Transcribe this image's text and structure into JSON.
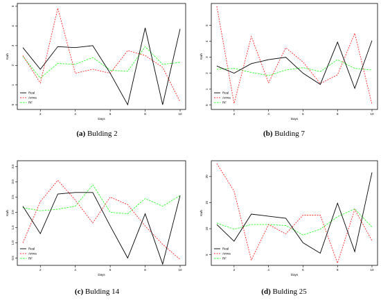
{
  "colors": {
    "Real": "#000000",
    "Arima": "#ff2a2a",
    "RF": "#33ff33"
  },
  "captions": [
    {
      "letter": "(a)",
      "text": " Bulding 2"
    },
    {
      "letter": "(b)",
      "text": " Bulding 7"
    },
    {
      "letter": "(c)",
      "text": " Bulding 14"
    },
    {
      "letter": "(d)",
      "text": " Bulding 25"
    }
  ],
  "chart_data": [
    {
      "type": "line",
      "xlabel": "Days",
      "ylabel": "Kwh",
      "x": [
        1,
        2,
        3,
        4,
        5,
        6,
        7,
        8,
        9,
        10
      ],
      "xticks": [
        2,
        4,
        6,
        8,
        10
      ],
      "yticks": [
        0,
        1,
        2,
        3,
        4,
        5
      ],
      "ylim": [
        -0.1,
        5.0
      ],
      "legend": "bottom-left",
      "series": [
        {
          "name": "Real",
          "values": [
            2.9,
            1.8,
            2.95,
            2.9,
            3.0,
            1.6,
            0.0,
            3.9,
            0.0,
            3.85
          ]
        },
        {
          "name": "Arima",
          "values": [
            2.5,
            1.1,
            4.9,
            1.6,
            1.8,
            1.6,
            2.75,
            2.5,
            1.9,
            0.15
          ]
        },
        {
          "name": "RF",
          "values": [
            2.45,
            1.35,
            2.1,
            2.05,
            2.4,
            1.75,
            1.7,
            2.95,
            2.05,
            2.15
          ]
        }
      ]
    },
    {
      "type": "line",
      "xlabel": "Days",
      "ylabel": "Kwh",
      "x": [
        1,
        2,
        3,
        4,
        5,
        6,
        7,
        8,
        9,
        10
      ],
      "xticks": [
        2,
        4,
        6,
        8,
        10
      ],
      "yticks": [
        0,
        1,
        2,
        3,
        4,
        5
      ],
      "ylim": [
        -0.1,
        6.2
      ],
      "legend": "bottom-left",
      "series": [
        {
          "name": "Real",
          "values": [
            2.45,
            2.0,
            2.6,
            2.85,
            3.0,
            2.0,
            1.3,
            3.95,
            1.05,
            4.05
          ]
        },
        {
          "name": "Arima",
          "values": [
            6.2,
            0.1,
            4.3,
            1.4,
            3.6,
            2.7,
            1.35,
            1.9,
            4.5,
            0.05
          ]
        },
        {
          "name": "RF",
          "values": [
            2.25,
            2.3,
            2.05,
            1.85,
            2.2,
            2.35,
            2.1,
            2.85,
            2.3,
            2.2
          ]
        }
      ]
    },
    {
      "type": "line",
      "xlabel": "Days",
      "ylabel": "Kwh",
      "x": [
        1,
        2,
        3,
        4,
        5,
        6,
        7,
        8,
        9,
        10
      ],
      "xticks": [
        2,
        4,
        6,
        8,
        10
      ],
      "yticks": [
        0.5,
        1.0,
        1.5,
        2.0,
        2.5,
        3.0,
        3.5
      ],
      "yticklabels": [
        "0.5",
        "1.0",
        "1.5",
        "2.0",
        "2.5",
        "3.0",
        "3.5"
      ],
      "ylim": [
        0.35,
        3.6
      ],
      "legend": "bottom-left",
      "series": [
        {
          "name": "Real",
          "values": [
            2.2,
            1.3,
            2.6,
            2.65,
            2.65,
            1.55,
            0.5,
            1.95,
            0.3,
            2.55
          ]
        },
        {
          "name": "Arima",
          "values": [
            1.0,
            2.35,
            3.05,
            2.4,
            1.65,
            2.5,
            2.25,
            1.55,
            0.95,
            0.45
          ]
        },
        {
          "name": "RF",
          "values": [
            2.15,
            2.05,
            2.1,
            2.2,
            2.9,
            2.0,
            1.95,
            2.45,
            2.2,
            2.55
          ]
        }
      ]
    },
    {
      "type": "line",
      "xlabel": "Days",
      "ylabel": "Kwh",
      "x": [
        1,
        2,
        3,
        4,
        5,
        6,
        7,
        8,
        9,
        10
      ],
      "xticks": [
        2,
        4,
        6,
        8,
        10
      ],
      "yticks": [
        5,
        10,
        15,
        20
      ],
      "ylim": [
        3.5,
        22.5
      ],
      "legend": "bottom-left",
      "series": [
        {
          "name": "Real",
          "values": [
            10.8,
            7.6,
            12.8,
            12.4,
            12.0,
            7.3,
            5.3,
            14.9,
            5.6,
            20.8
          ]
        },
        {
          "name": "Arima",
          "values": [
            22.5,
            17.2,
            4.0,
            10.8,
            9.0,
            12.6,
            12.6,
            3.4,
            13.7,
            7.7
          ]
        },
        {
          "name": "RF",
          "values": [
            11.1,
            9.9,
            10.8,
            10.8,
            10.6,
            8.8,
            9.9,
            12.3,
            13.8,
            10.3
          ]
        }
      ]
    }
  ]
}
